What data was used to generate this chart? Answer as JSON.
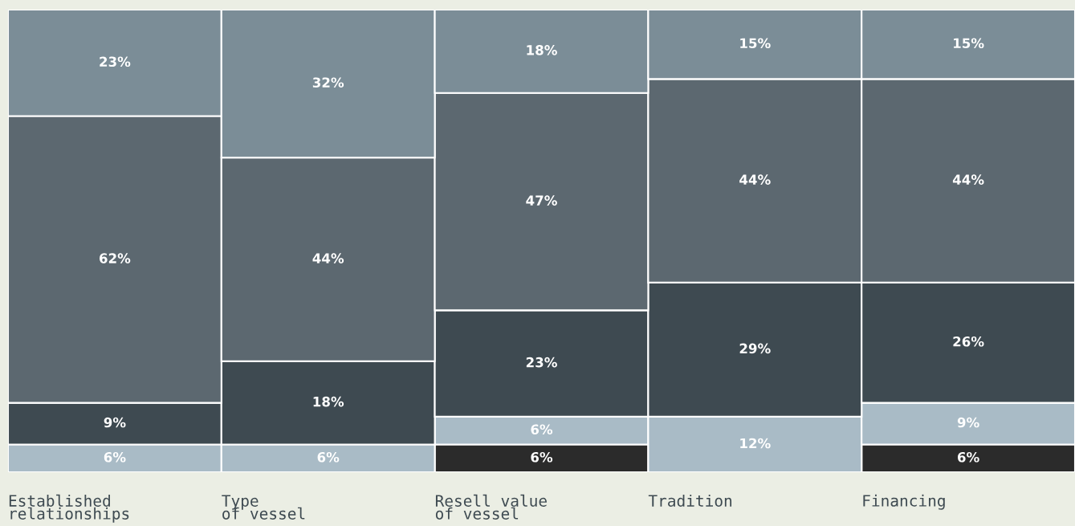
{
  "chart_data": {
    "type": "bar",
    "stacked": true,
    "categories": [
      "Established\nrelationships",
      "Type\nof vessel",
      "Resell value\nof vessel",
      "Tradition",
      "Financing"
    ],
    "series": [
      {
        "color": "#2b2b2b",
        "values": [
          null,
          null,
          6,
          null,
          6
        ],
        "value_labels": [
          null,
          null,
          "6%",
          null,
          "6%"
        ]
      },
      {
        "color": "#a9bbc6",
        "values": [
          6,
          6,
          6,
          12,
          9
        ],
        "value_labels": [
          "6%",
          "6%",
          "6%",
          "12%",
          "9%"
        ]
      },
      {
        "color": "#3e4a51",
        "values": [
          9,
          18,
          23,
          29,
          26
        ],
        "value_labels": [
          "9%",
          "18%",
          "23%",
          "29%",
          "26%"
        ]
      },
      {
        "color": "#5c6870",
        "values": [
          62,
          44,
          47,
          44,
          44
        ],
        "value_labels": [
          "62%",
          "44%",
          "47%",
          "44%",
          "44%"
        ]
      },
      {
        "color": "#7b8d97",
        "values": [
          23,
          32,
          18,
          15,
          15
        ],
        "value_labels": [
          "23%",
          "32%",
          "18%",
          "15%",
          "15%"
        ]
      }
    ],
    "tick_labels": "x"
  }
}
